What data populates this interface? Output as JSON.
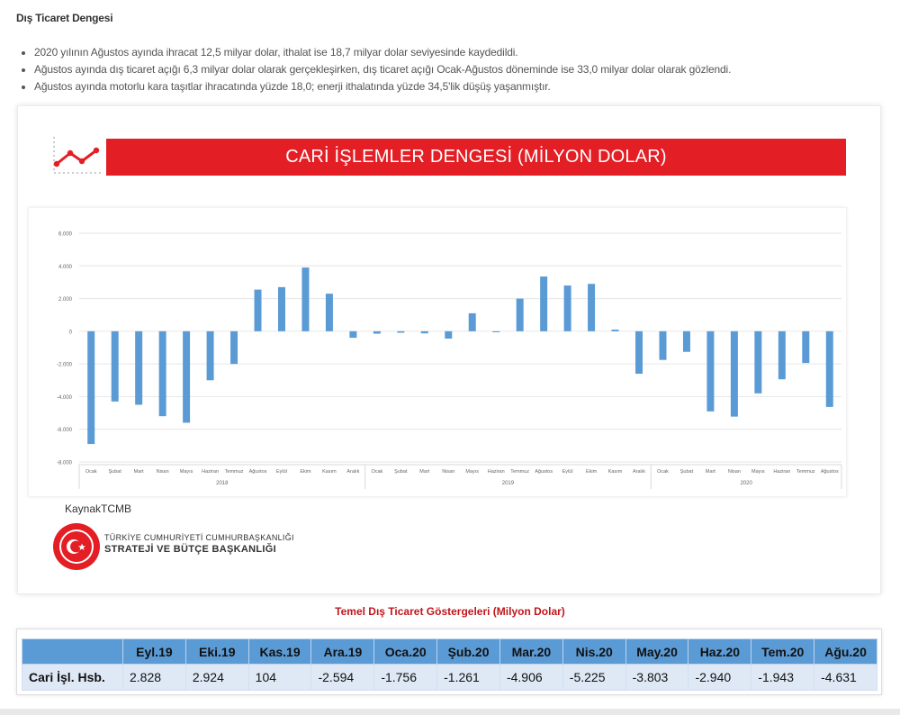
{
  "page": {
    "section_title": "Dış Ticaret Dengesi",
    "bullets": [
      "2020 yılının Ağustos ayında ihracat 12,5 milyar dolar, ithalat ise 18,7 milyar dolar seviyesinde kaydedildi.",
      "Ağustos ayında dış ticaret açığı 6,3 milyar dolar olarak gerçekleşirken, dış ticaret açığı Ocak-Ağustos döneminde ise 33,0 milyar dolar olarak gözlendi.",
      "Ağustos ayında motorlu kara taşıtlar ihracatında yüzde 18,0; enerji ithalatında yüzde 34,5'lik düşüş yaşanmıştır."
    ]
  },
  "card": {
    "banner_title": "CARİ İŞLEMLER DENGESİ (MİLYON DOLAR)",
    "source": "KaynakTCMB",
    "org_line1": "TÜRKİYE CUMHURİYETİ CUMHURBAŞKANLIĞI",
    "org_line2": "STRATEJİ VE BÜTÇE BAŞKANLIĞI"
  },
  "chart_data": {
    "type": "bar",
    "title": "CARİ İŞLEMLER DENGESİ (MİLYON DOLAR)",
    "ylim": [
      -8000,
      6000
    ],
    "yticks": [
      -8000,
      -6000,
      -4000,
      -2000,
      0,
      2000,
      4000,
      6000
    ],
    "ytick_labels": [
      "-8.000",
      "-6.000",
      "-4.000",
      "-2.000",
      "0",
      "2.000",
      "4.000",
      "6.000"
    ],
    "grid": true,
    "bar_color": "#5b9bd5",
    "categories": [
      "Ocak",
      "Şubat",
      "Mart",
      "Nisan",
      "Mayıs",
      "Haziran",
      "Temmuz",
      "Ağustos",
      "Eylül",
      "Ekim",
      "Kasım",
      "Aralık",
      "Ocak",
      "Şubat",
      "Mart",
      "Nisan",
      "Mayıs",
      "Haziran",
      "Temmuz",
      "Ağustos",
      "Eylül",
      "Ekim",
      "Kasım",
      "Aralık",
      "Ocak",
      "Şubat",
      "Mart",
      "Nisan",
      "Mayıs",
      "Haziran",
      "Temmuz",
      "Ağustos"
    ],
    "groups": [
      {
        "label": "2018",
        "count": 12
      },
      {
        "label": "2019",
        "count": 12
      },
      {
        "label": "2020",
        "count": 8
      }
    ],
    "values": [
      -6900,
      -4300,
      -4500,
      -5200,
      -5600,
      -3000,
      -2000,
      2550,
      2700,
      3900,
      2300,
      -400,
      -150,
      -90,
      -130,
      -450,
      1100,
      -60,
      2000,
      3350,
      2800,
      2900,
      100,
      -2600,
      -1756,
      -1261,
      -4906,
      -5225,
      -3803,
      -2940,
      -1943,
      -4631
    ]
  },
  "table": {
    "title": "Temel Dış Ticaret Göstergeleri (Milyon Dolar)",
    "row_header": "Cari İşl. Hsb.",
    "columns": [
      "Eyl.19",
      "Eki.19",
      "Kas.19",
      "Ara.19",
      "Oca.20",
      "Şub.20",
      "Mar.20",
      "Nis.20",
      "May.20",
      "Haz.20",
      "Tem.20",
      "Ağu.20"
    ],
    "values": [
      "2.828",
      "2.924",
      "104",
      "-2.594",
      "-1.756",
      "-1.261",
      "-4.906",
      "-5.225",
      "-3.803",
      "-2.940",
      "-1.943",
      "-4.631"
    ]
  }
}
